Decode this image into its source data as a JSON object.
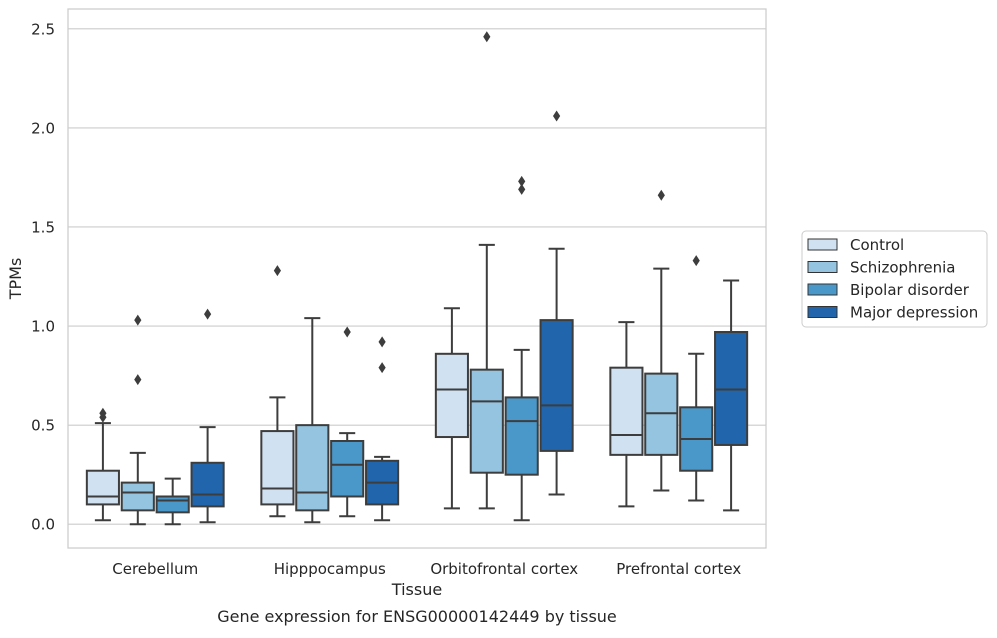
{
  "chart_data": {
    "type": "box",
    "title": "",
    "xlabel": "Tissue",
    "ylabel": "TPMs",
    "caption": "Gene expression for ENSG00000142449 by tissue",
    "ylim": [
      -0.12,
      2.6
    ],
    "yticks": [
      0.0,
      0.5,
      1.0,
      1.5,
      2.0,
      2.5
    ],
    "ytick_labels": [
      "0.0",
      "0.5",
      "1.0",
      "1.5",
      "2.0",
      "2.5"
    ],
    "categories": [
      "Cerebellum",
      "Hipppocampus",
      "Orbitofrontal cortex",
      "Prefrontal cortex"
    ],
    "grid": "horizontal",
    "legend_position": "right",
    "series": [
      {
        "name": "Control",
        "color": "#d0e1f2",
        "boxes": [
          {
            "q1": 0.1,
            "median": 0.14,
            "q3": 0.27,
            "whislo": 0.02,
            "whishi": 0.51,
            "fliers": [
              0.54,
              0.56
            ]
          },
          {
            "q1": 0.1,
            "median": 0.18,
            "q3": 0.47,
            "whislo": 0.04,
            "whishi": 0.64,
            "fliers": [
              1.28
            ]
          },
          {
            "q1": 0.44,
            "median": 0.68,
            "q3": 0.86,
            "whislo": 0.08,
            "whishi": 1.09,
            "fliers": []
          },
          {
            "q1": 0.35,
            "median": 0.45,
            "q3": 0.79,
            "whislo": 0.09,
            "whishi": 1.02,
            "fliers": []
          }
        ]
      },
      {
        "name": "Schizophrenia",
        "color": "#94c4df",
        "boxes": [
          {
            "q1": 0.07,
            "median": 0.16,
            "q3": 0.21,
            "whislo": 0.0,
            "whishi": 0.36,
            "fliers": [
              0.73,
              1.03
            ]
          },
          {
            "q1": 0.07,
            "median": 0.16,
            "q3": 0.5,
            "whislo": 0.01,
            "whishi": 1.04,
            "fliers": []
          },
          {
            "q1": 0.26,
            "median": 0.62,
            "q3": 0.78,
            "whislo": 0.08,
            "whishi": 1.41,
            "fliers": [
              2.46
            ]
          },
          {
            "q1": 0.35,
            "median": 0.56,
            "q3": 0.76,
            "whislo": 0.17,
            "whishi": 1.29,
            "fliers": [
              1.66
            ]
          }
        ]
      },
      {
        "name": "Bipolar disorder",
        "color": "#4a98c9",
        "boxes": [
          {
            "q1": 0.06,
            "median": 0.12,
            "q3": 0.14,
            "whislo": 0.0,
            "whishi": 0.23,
            "fliers": []
          },
          {
            "q1": 0.14,
            "median": 0.3,
            "q3": 0.42,
            "whislo": 0.04,
            "whishi": 0.46,
            "fliers": [
              0.97
            ]
          },
          {
            "q1": 0.25,
            "median": 0.52,
            "q3": 0.64,
            "whislo": 0.02,
            "whishi": 0.88,
            "fliers": [
              1.69,
              1.73
            ]
          },
          {
            "q1": 0.27,
            "median": 0.43,
            "q3": 0.59,
            "whislo": 0.12,
            "whishi": 0.86,
            "fliers": [
              1.33
            ]
          }
        ]
      },
      {
        "name": "Major depression",
        "color": "#2166ac",
        "boxes": [
          {
            "q1": 0.09,
            "median": 0.15,
            "q3": 0.31,
            "whislo": 0.01,
            "whishi": 0.49,
            "fliers": [
              1.06
            ]
          },
          {
            "q1": 0.1,
            "median": 0.21,
            "q3": 0.32,
            "whislo": 0.02,
            "whishi": 0.34,
            "fliers": [
              0.79,
              0.92
            ]
          },
          {
            "q1": 0.37,
            "median": 0.6,
            "q3": 1.03,
            "whislo": 0.15,
            "whishi": 1.39,
            "fliers": [
              2.06
            ]
          },
          {
            "q1": 0.4,
            "median": 0.68,
            "q3": 0.97,
            "whislo": 0.07,
            "whishi": 1.23,
            "fliers": []
          }
        ]
      }
    ]
  }
}
